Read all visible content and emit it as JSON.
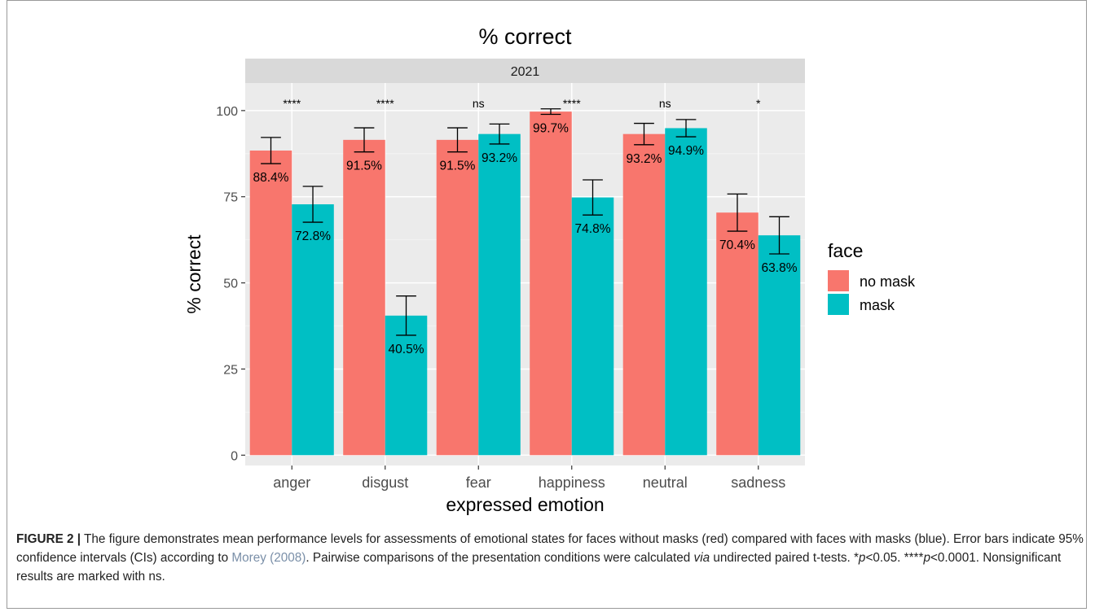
{
  "chart_data": {
    "type": "bar",
    "title": "% correct",
    "facet_label": "2021",
    "xlabel": "expressed emotion",
    "ylabel": "% correct",
    "ylim": [
      -3,
      108
    ],
    "yticks": [
      0,
      25,
      50,
      75,
      100
    ],
    "grid": true,
    "categories": [
      "anger",
      "disgust",
      "fear",
      "happiness",
      "neutral",
      "sadness"
    ],
    "series": [
      {
        "name": "no mask",
        "color": "#F8766D",
        "values": [
          88.4,
          91.5,
          91.5,
          99.7,
          93.2,
          70.4
        ],
        "labels": [
          "88.4%",
          "91.5%",
          "91.5%",
          "99.7%",
          "93.2%",
          "70.4%"
        ],
        "ci_low": [
          84.6,
          88.0,
          88.0,
          98.9,
          90.1,
          65.0
        ],
        "ci_high": [
          92.2,
          95.0,
          95.0,
          100.5,
          96.3,
          75.8
        ]
      },
      {
        "name": "mask",
        "color": "#00BFC4",
        "values": [
          72.8,
          40.5,
          93.2,
          74.8,
          94.9,
          63.8
        ],
        "labels": [
          "72.8%",
          "40.5%",
          "93.2%",
          "74.8%",
          "94.9%",
          "63.8%"
        ],
        "ci_low": [
          67.6,
          34.8,
          90.3,
          69.7,
          92.4,
          58.4
        ],
        "ci_high": [
          78.0,
          46.2,
          96.1,
          79.9,
          97.4,
          69.2
        ]
      }
    ],
    "significance": [
      "****",
      "****",
      "ns",
      "****",
      "ns",
      "*"
    ],
    "legend": {
      "title": "face",
      "position": "right"
    }
  },
  "caption": {
    "label": "FIGURE 2 |",
    "text1": " The figure demonstrates mean performance levels for assessments of emotional states for faces without masks (red) compared with faces with masks (blue). Error bars indicate 95% confidence intervals (CIs) according to ",
    "ref": "Morey (2008)",
    "text2": ". Pairwise comparisons of the presentation conditions were calculated ",
    "via": "via",
    "text3": " undirected paired t-tests. ",
    "star1": "*",
    "p1": "p",
    "text4": "<0.05. ",
    "star4": "****",
    "p2": "p",
    "text5": "<0.0001. Nonsignificant results are marked with ns."
  }
}
